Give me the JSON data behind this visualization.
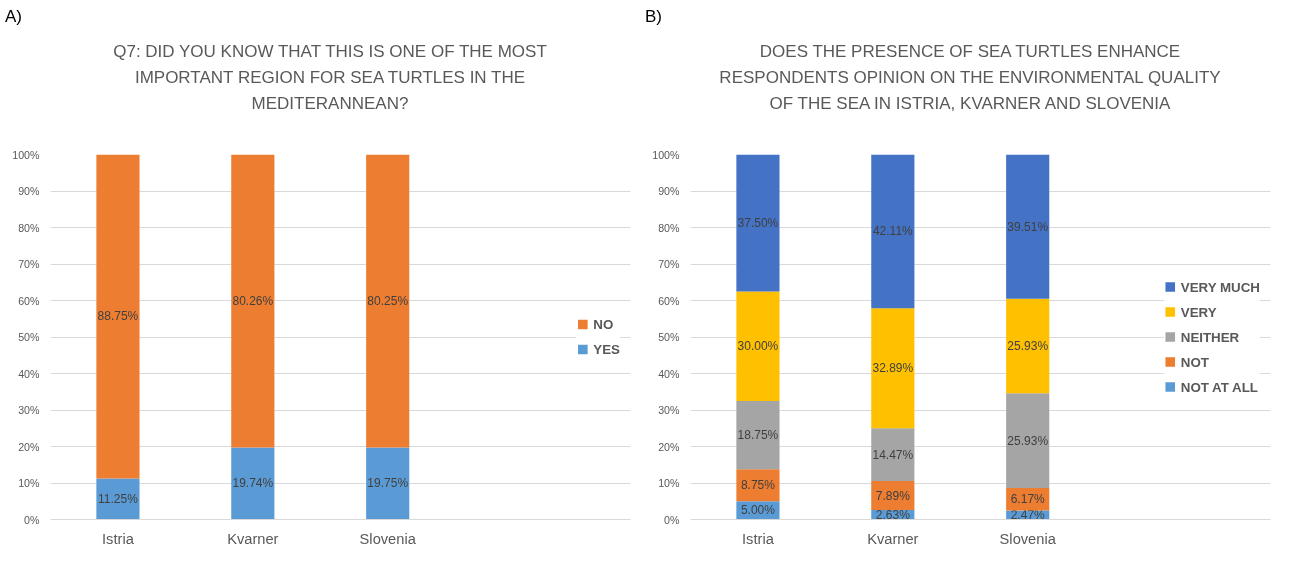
{
  "chart_data": [
    {
      "type": "bar",
      "stacked": true,
      "title": "Q7: DID YOU KNOW THAT THIS IS ONE OF THE MOST IMPORTANT REGION FOR SEA TURTLES IN THE MEDITERANNEAN?",
      "annotations": [
        "A)"
      ],
      "categories": [
        "Istria",
        "Kvarner",
        "Slovenia"
      ],
      "series": [
        {
          "name": "YES",
          "color": "#5b9bd5",
          "values": [
            11.25,
            19.74,
            19.75
          ],
          "value_labels": [
            "11.25%",
            "19.74%",
            "19.75%"
          ]
        },
        {
          "name": "NO",
          "color": "#ed7d31",
          "values": [
            88.75,
            80.26,
            80.25
          ],
          "value_labels": [
            "88.75%",
            "80.26%",
            "80.25%"
          ]
        }
      ],
      "ylim": [
        0,
        100
      ],
      "yticks": [
        {
          "value": 0,
          "label": "0%"
        },
        {
          "value": 10,
          "label": "10%"
        },
        {
          "value": 20,
          "label": "20%"
        },
        {
          "value": 30,
          "label": "30%"
        },
        {
          "value": 40,
          "label": "40%"
        },
        {
          "value": 50,
          "label": "50%"
        },
        {
          "value": 60,
          "label": "60%"
        },
        {
          "value": 70,
          "label": "70%"
        },
        {
          "value": 80,
          "label": "80%"
        },
        {
          "value": 90,
          "label": "90%"
        },
        {
          "value": 100,
          "label": "100%"
        }
      ],
      "grid": "y",
      "legend": "right"
    },
    {
      "type": "bar",
      "stacked": true,
      "title": "DOES THE PRESENCE OF SEA TURTLES ENHANCE RESPONDENTS OPINION ON THE ENVIRONMENTAL QUALITY OF THE SEA IN ISTRIA, KVARNER AND SLOVENIA",
      "annotations": [
        "B)"
      ],
      "categories": [
        "Istria",
        "Kvarner",
        "Slovenia"
      ],
      "series": [
        {
          "name": "NOT AT ALL",
          "color": "#5b9bd5",
          "values": [
            5.0,
            2.63,
            2.47
          ],
          "value_labels": [
            "5.00%",
            "2.63%",
            "2.47%"
          ]
        },
        {
          "name": "NOT",
          "color": "#ed7d31",
          "values": [
            8.75,
            7.89,
            6.17
          ],
          "value_labels": [
            "8.75%",
            "7.89%",
            "6.17%"
          ]
        },
        {
          "name": "NEITHER",
          "color": "#a5a5a5",
          "values": [
            18.75,
            14.47,
            25.93
          ],
          "value_labels": [
            "18.75%",
            "14.47%",
            "25.93%"
          ]
        },
        {
          "name": "VERY",
          "color": "#ffc000",
          "values": [
            30.0,
            32.89,
            25.93
          ],
          "value_labels": [
            "30.00%",
            "32.89%",
            "25.93%"
          ]
        },
        {
          "name": "VERY MUCH",
          "color": "#4472c4",
          "values": [
            37.5,
            42.11,
            39.51
          ],
          "value_labels": [
            "37.50%",
            "42.11%",
            "39.51%"
          ]
        }
      ],
      "ylim": [
        0,
        100
      ],
      "yticks": [
        {
          "value": 0,
          "label": "0%"
        },
        {
          "value": 10,
          "label": "10%"
        },
        {
          "value": 20,
          "label": "20%"
        },
        {
          "value": 30,
          "label": "30%"
        },
        {
          "value": 40,
          "label": "40%"
        },
        {
          "value": 50,
          "label": "50%"
        },
        {
          "value": 60,
          "label": "60%"
        },
        {
          "value": 70,
          "label": "70%"
        },
        {
          "value": 80,
          "label": "80%"
        },
        {
          "value": 90,
          "label": "90%"
        },
        {
          "value": 100,
          "label": "100%"
        }
      ],
      "grid": "y",
      "legend": "right"
    }
  ]
}
